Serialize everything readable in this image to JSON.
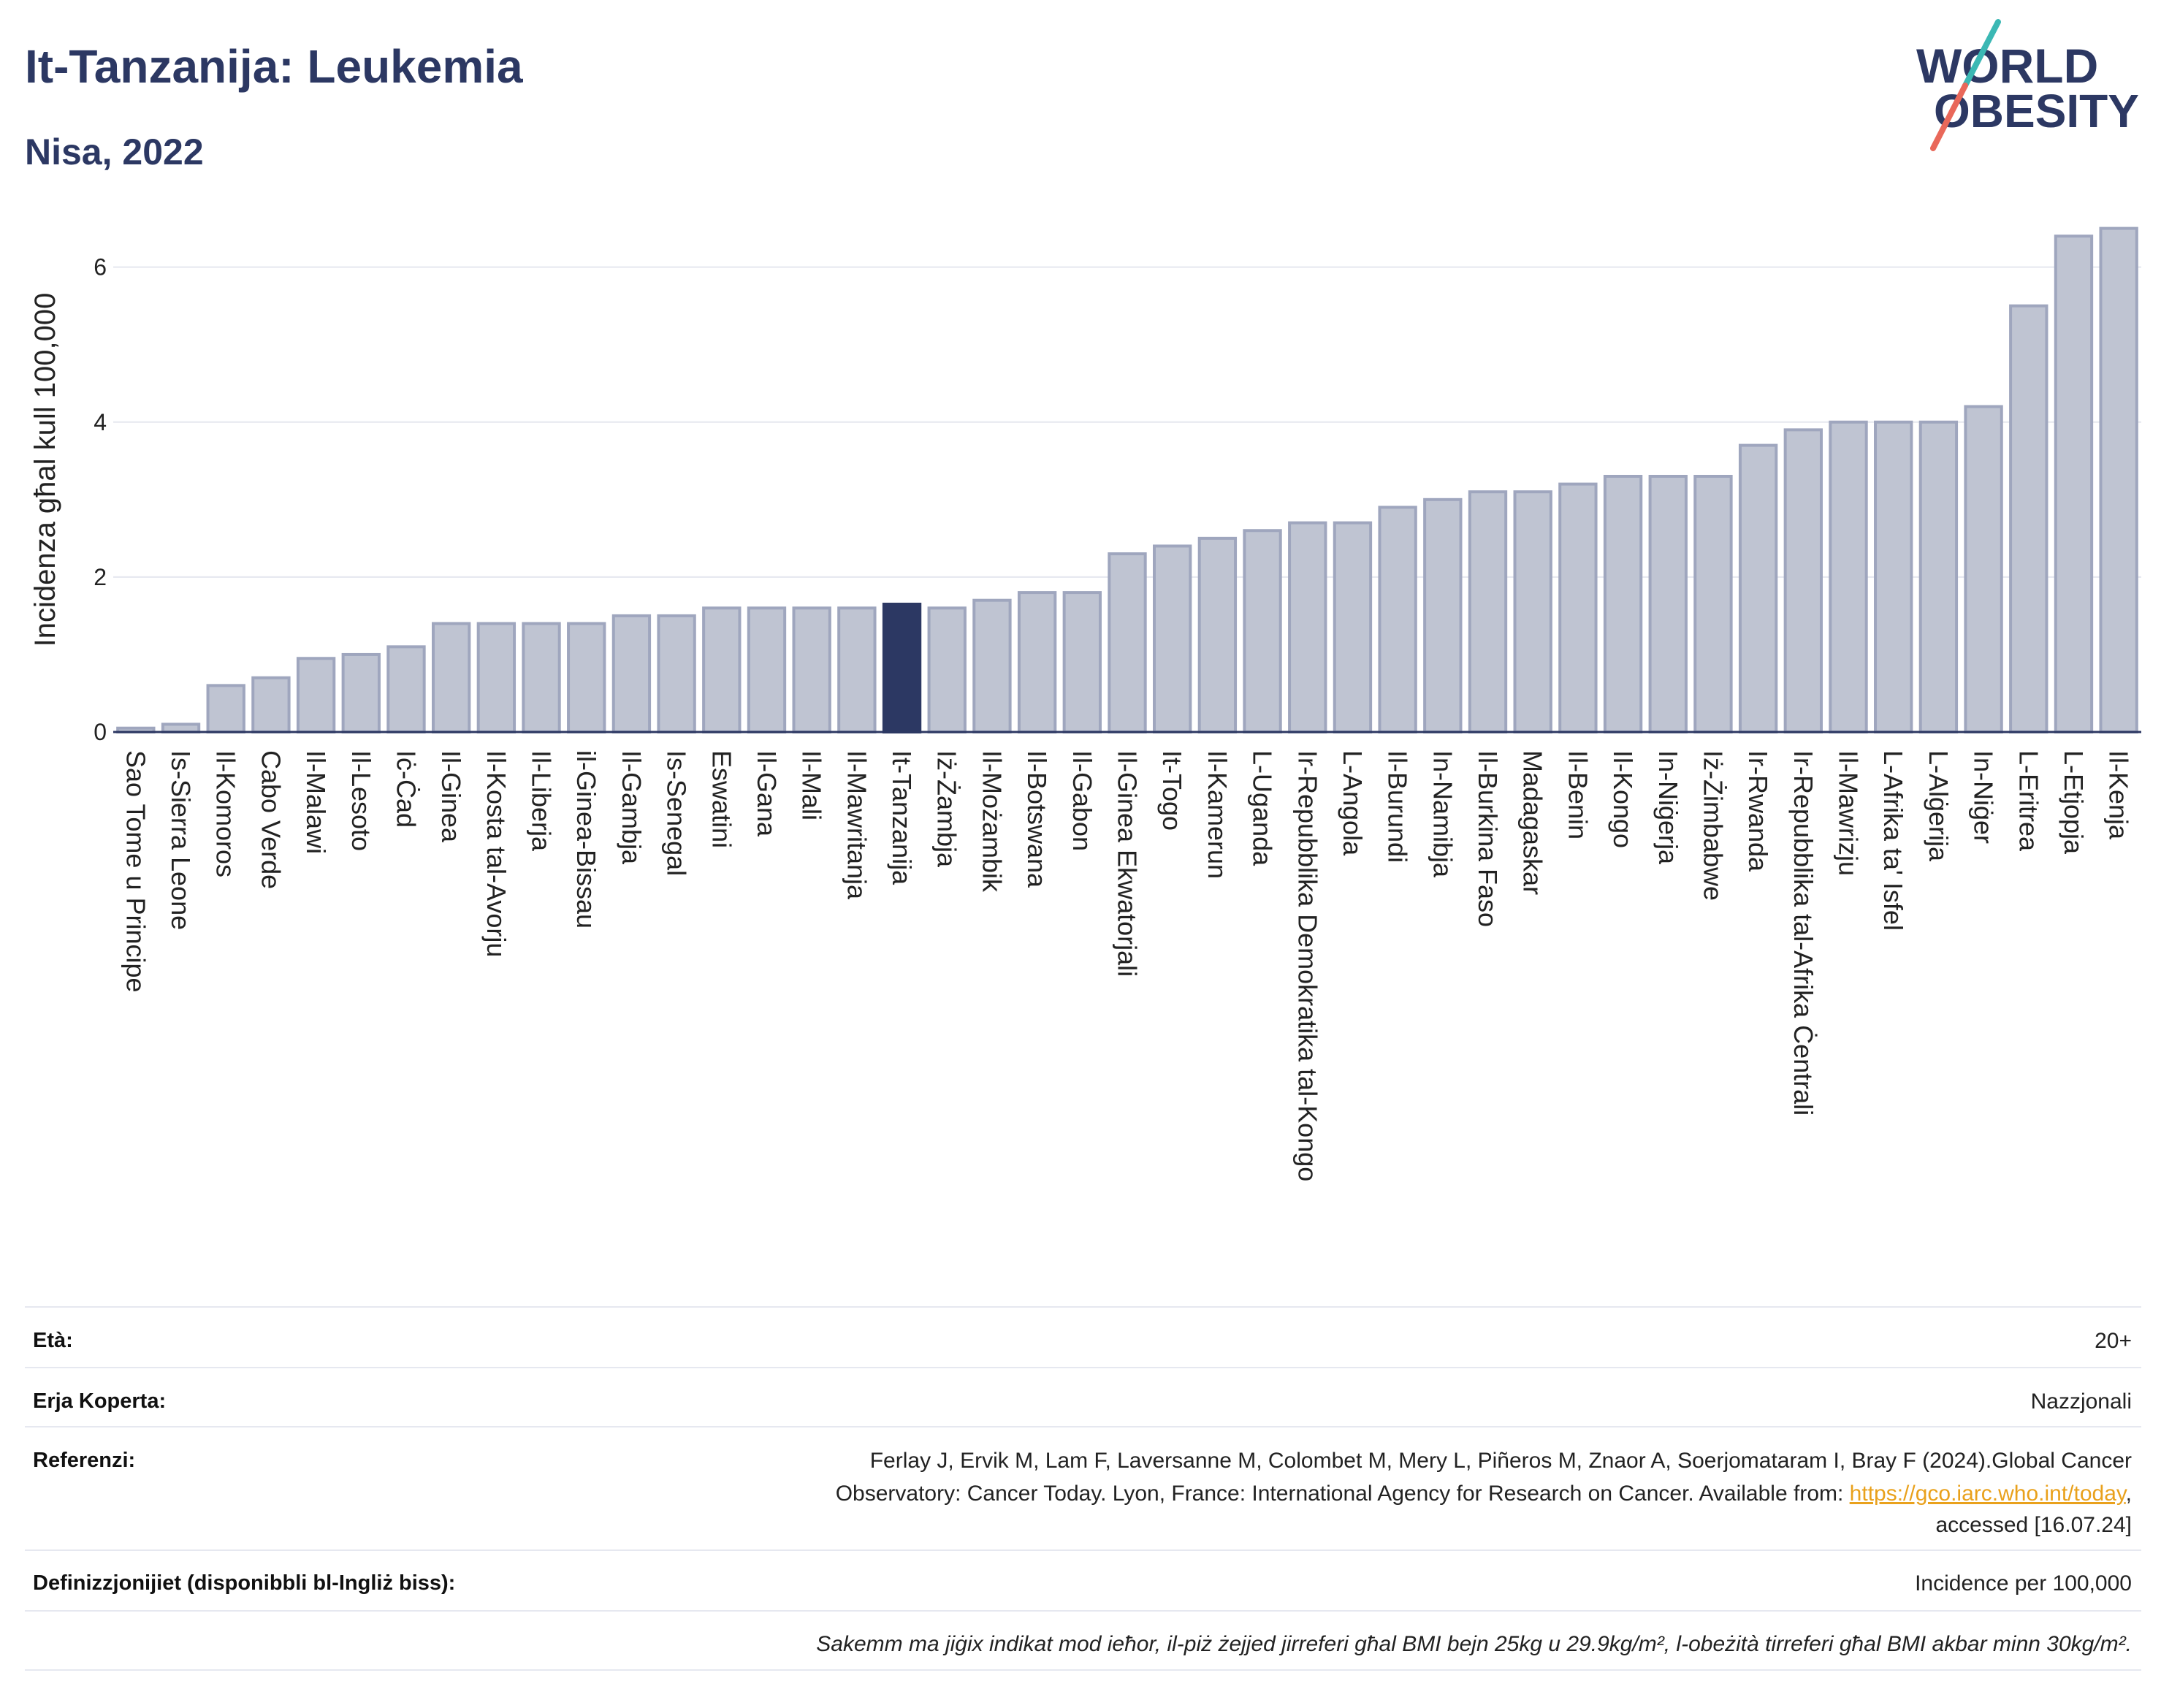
{
  "chart_data": {
    "type": "bar",
    "title": "It-Tanzanija: Leukemia",
    "subtitle": "Nisa, 2022",
    "ylabel": "Incidenza għal kull 100,000",
    "ylim": [
      0,
      6.6
    ],
    "yticks": [
      0,
      2,
      4,
      6
    ],
    "grid": true,
    "categories": [
      "Sao Tome u Principe",
      "Is-Sierra Leone",
      "Il-Komoros",
      "Cabo Verde",
      "Il-Malawi",
      "Il-Lesoto",
      "Iċ-Ċad",
      "Il-Ginea",
      "Il-Kosta tal-Avorju",
      "Il-Liberja",
      "il-Ginea-Bissau",
      "Il-Gambja",
      "Is-Senegal",
      "Eswatini",
      "Il-Gana",
      "Il-Mali",
      "Il-Mawritanja",
      "It-Tanzanija",
      "Iż-Żambja",
      "Il-Możambik",
      "Il-Botswana",
      "Il-Gabon",
      "Il-Ginea Ekwatorjali",
      "It-Togo",
      "Il-Kamerun",
      "L-Uganda",
      "Ir-Repubblika Demokratika tal-Kongo",
      "L-Angola",
      "Il-Burundi",
      "In-Namibja",
      "Il-Burkina Faso",
      "Madagaskar",
      "Il-Benin",
      "Il-Kongo",
      "In-Niġerja",
      "Iż-Żimbabwe",
      "Ir-Rwanda",
      "Ir-Repubblika tal-Afrika Ċentrali",
      "Il-Mawrizju",
      "L-Afrika ta' Isfel",
      "L-Alġerija",
      "In-Niġer",
      "L-Eritrea",
      "L-Etjopja",
      "Il-Kenja"
    ],
    "values": [
      0.05,
      0.1,
      0.6,
      0.7,
      0.95,
      1.0,
      1.1,
      1.4,
      1.4,
      1.4,
      1.4,
      1.5,
      1.5,
      1.6,
      1.6,
      1.6,
      1.6,
      1.65,
      1.6,
      1.7,
      1.8,
      1.8,
      2.3,
      2.4,
      2.5,
      2.6,
      2.7,
      2.7,
      2.9,
      3.0,
      3.1,
      3.1,
      3.2,
      3.3,
      3.3,
      3.3,
      3.7,
      3.9,
      4.0,
      4.0,
      4.0,
      4.2,
      5.5,
      6.4,
      6.5
    ],
    "highlight_index": 17
  },
  "logo": {
    "line1": "WORLD",
    "line2": "OBESITY"
  },
  "info": {
    "age": {
      "label": "Età:",
      "value": "20+"
    },
    "area": {
      "label": "Erja Koperta:",
      "value": "Nazzjonali"
    },
    "references": {
      "label": "Referenzi:",
      "line1": "Ferlay J, Ervik M, Lam F, Laversanne M, Colombet M, Mery L, Piñeros M, Znaor A, Soerjomataram I, Bray F (2024).Global Cancer",
      "line2": "Observatory: Cancer Today. Lyon, France: International Agency for Research on Cancer. Available from: ",
      "link": "https://gco.iarc.who.int/today",
      "line2_end": ",",
      "line3": "accessed [16.07.24]"
    },
    "definitions": {
      "label": "Definizzjonijiet (disponibbli bl-Ingliż biss):",
      "value": "Incidence per 100,000"
    },
    "note": "Sakemm ma jiġix indikat mod ieħor, il-piż żejjed jirreferi għal BMI bejn 25kg u 29.9kg/m², l-obeżità tirreferi għal BMI akbar minn 30kg/m²."
  },
  "colors": {
    "title": "#2c3863",
    "bar_fill": "#bfc4d2",
    "bar_stroke": "#9fa6be",
    "highlight": "#2c3863",
    "grid": "#e5e7ef",
    "axis_line": "#2c3863",
    "axis_text": "#222222",
    "link": "#e9a11c",
    "logo_teal": "#3bb8b4",
    "logo_coral": "#e9685a"
  }
}
